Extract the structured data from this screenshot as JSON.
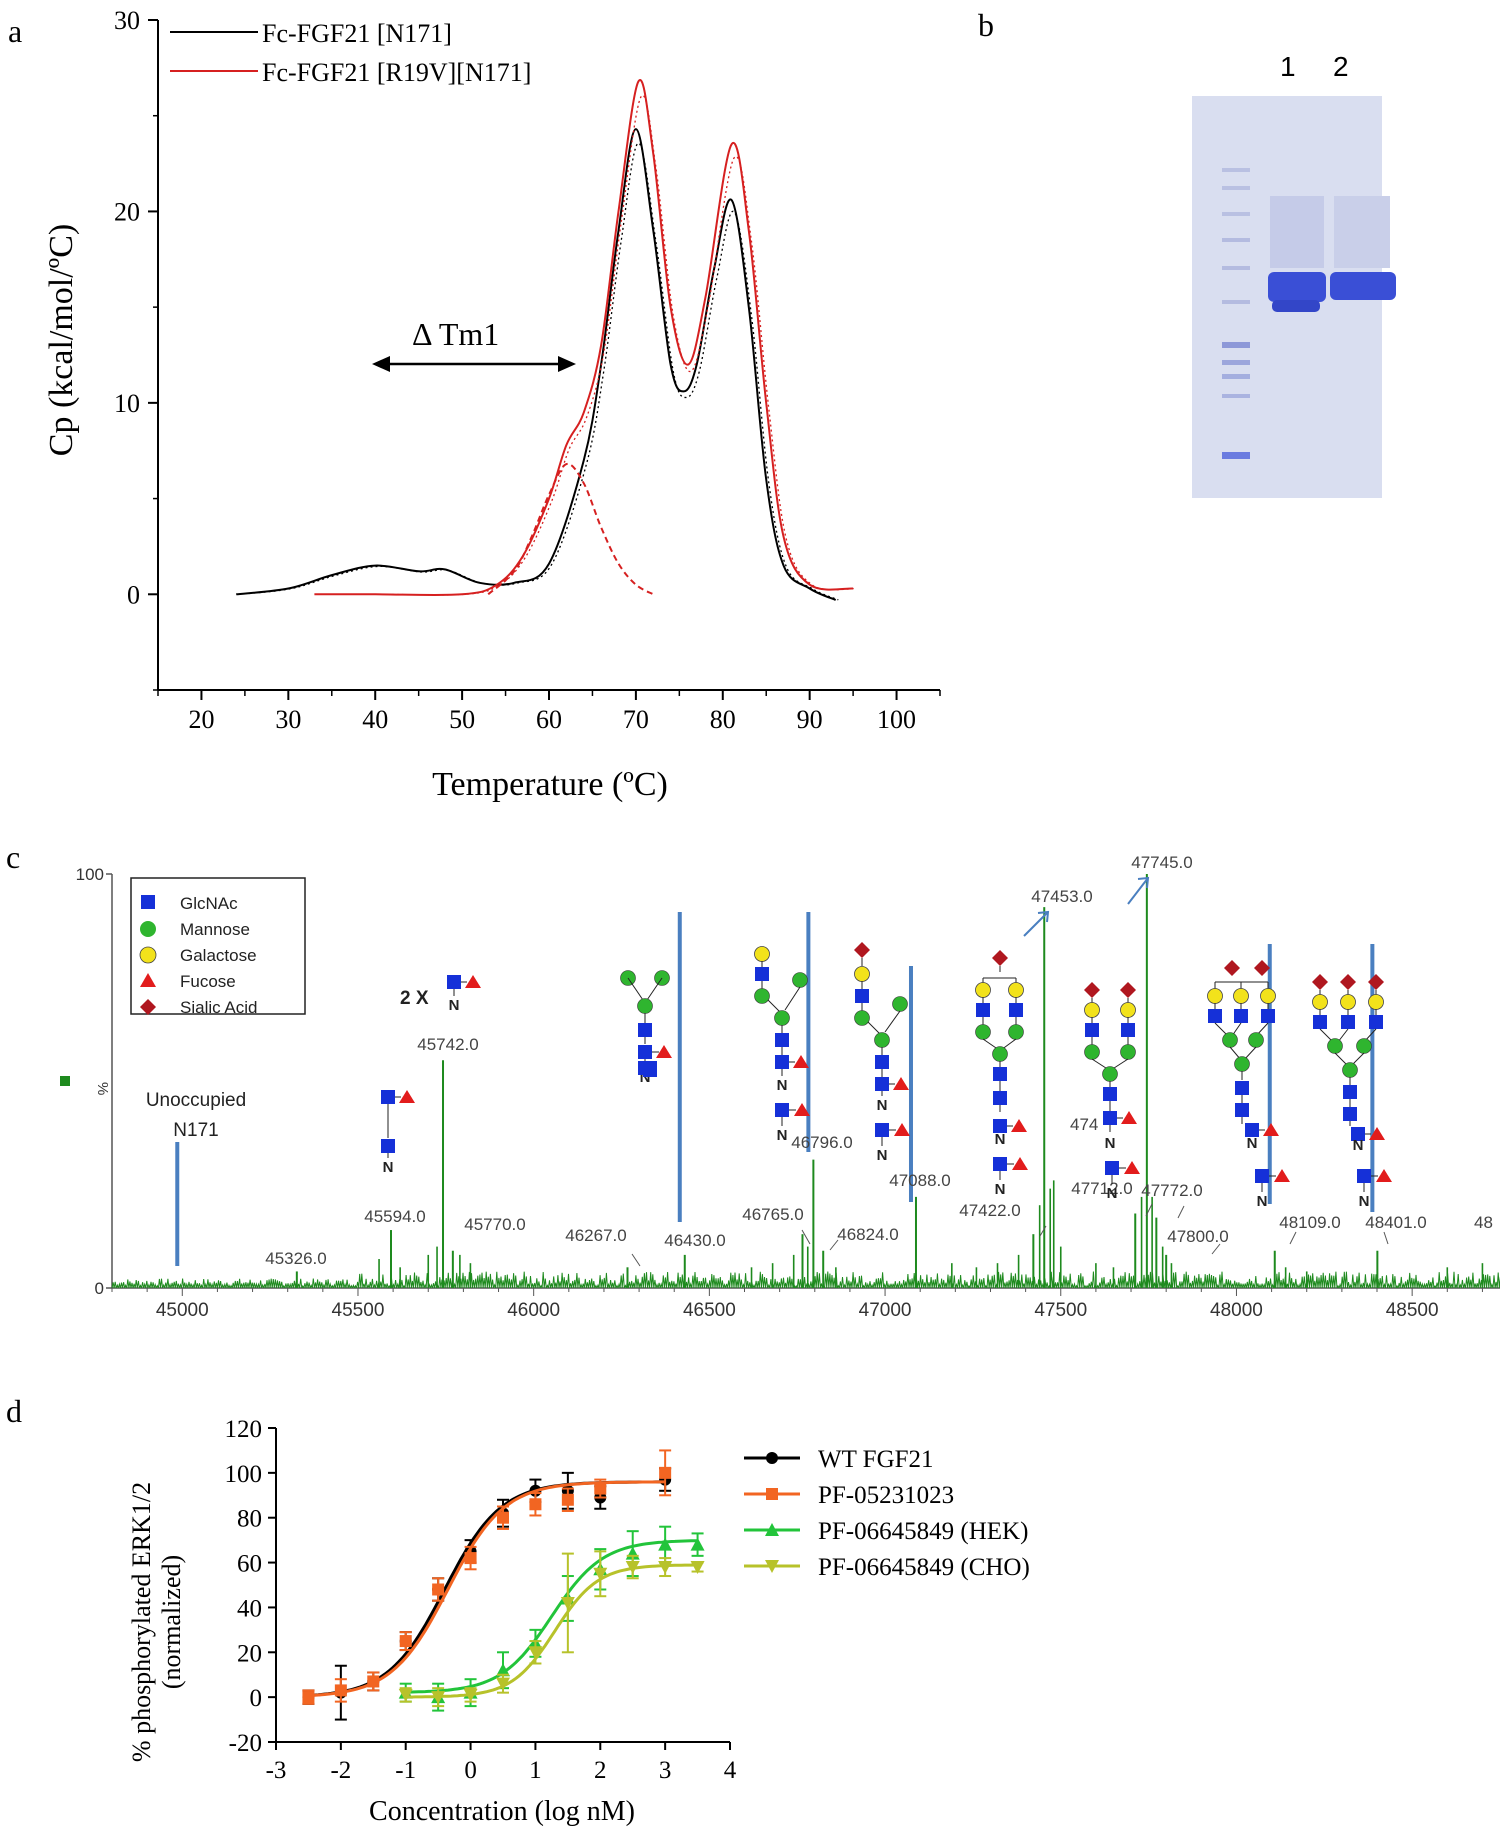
{
  "colors": {
    "black": "#000000",
    "red": "#d62020",
    "green": "#1e8a1e",
    "ms_blue_bar": "#4a7fc0",
    "glc_blue": "#1530d8",
    "man_green": "#2fb52f",
    "gal_yellow": "#f2e21b",
    "fuc_red": "#e21c1c",
    "sia_red": "#b0171f",
    "orange": "#f26522",
    "lime": "#22c43a",
    "olive": "#b7c22a",
    "gel_bg": "#dbe0f0",
    "gel_band": "#3a4fd6"
  },
  "panel_labels": {
    "a": "a",
    "b": "b",
    "c": "c",
    "d": "d"
  },
  "chart_data": [
    {
      "panel": "a",
      "type": "line",
      "xlabel": "Temperature (ºC)",
      "ylabel": "Cp (kcal/mol/ºC)",
      "xlim": [
        15,
        105
      ],
      "ylim": [
        -5,
        30
      ],
      "xticks": [
        20,
        30,
        40,
        50,
        60,
        70,
        80,
        90,
        100
      ],
      "yticks": [
        0,
        10,
        20,
        30
      ],
      "annotation": "Δ Tm1",
      "legend": [
        "Fc-FGF21 [N171]",
        "Fc-FGF21 [R19V][N171]"
      ],
      "series": [
        {
          "name": "Fc-FGF21 [N171]",
          "x": [
            24,
            30,
            35,
            40,
            45,
            48,
            52,
            56,
            60,
            64,
            66,
            68,
            70,
            72,
            74,
            75.5,
            77,
            79,
            81,
            83,
            85,
            87,
            90,
            93
          ],
          "y": [
            0,
            0.3,
            1.0,
            1.5,
            1.2,
            1.3,
            0.6,
            0.6,
            1.6,
            7,
            12,
            19,
            24.3,
            19,
            12,
            10.6,
            12,
            17,
            20.6,
            15,
            6,
            1.5,
            0.3,
            -0.3
          ]
        },
        {
          "name": "Fc-FGF21 [R19V][N171]",
          "x": [
            33,
            40,
            50,
            54,
            57,
            60,
            62,
            64,
            66,
            68,
            70.3,
            72,
            74,
            76,
            78,
            81,
            83,
            85,
            87,
            90,
            95
          ],
          "y": [
            0,
            0,
            0,
            0.5,
            2,
            5,
            7.8,
            9.5,
            13,
            20,
            26.8,
            23,
            15,
            12,
            15.5,
            23.5,
            19,
            10,
            3,
            0.5,
            0.3
          ]
        },
        {
          "name": "",
          "style": "dashed",
          "x": [
            53,
            56,
            58,
            60,
            62,
            64,
            66,
            68,
            70,
            72
          ],
          "y": [
            0,
            1.2,
            3,
            5.2,
            6.8,
            5.8,
            3.5,
            1.6,
            0.5,
            0
          ]
        }
      ]
    },
    {
      "panel": "c",
      "type": "bar",
      "ylabel": "%",
      "xlim": [
        44800,
        48750
      ],
      "ylim": [
        0,
        100
      ],
      "xticks": [
        45000,
        45500,
        46000,
        46500,
        47000,
        47500,
        48000,
        48500
      ],
      "yticks": [
        0,
        100
      ],
      "peaks": [
        {
          "x": 45326.0,
          "y": 4,
          "label": "45326.0"
        },
        {
          "x": 45594.0,
          "y": 14,
          "label": "45594.0"
        },
        {
          "x": 45742.0,
          "y": 55,
          "label": "45742.0"
        },
        {
          "x": 45770.0,
          "y": 9,
          "label": "45770.0"
        },
        {
          "x": 46267.0,
          "y": 5,
          "label": "46267.0"
        },
        {
          "x": 46430.0,
          "y": 8,
          "label": "46430.0"
        },
        {
          "x": 46765.0,
          "y": 13,
          "label": "46765.0"
        },
        {
          "x": 46796.0,
          "y": 31,
          "label": "46796.0"
        },
        {
          "x": 46824.0,
          "y": 9,
          "label": "46824.0"
        },
        {
          "x": 47088.0,
          "y": 22,
          "label": "47088.0"
        },
        {
          "x": 47422.0,
          "y": 13,
          "label": "47422.0"
        },
        {
          "x": 47453.0,
          "y": 92,
          "label": "47453.0"
        },
        {
          "x": 47712.0,
          "y": 18,
          "label": "47712.0"
        },
        {
          "x": 47745.0,
          "y": 100,
          "label": "47745.0"
        },
        {
          "x": 47772.0,
          "y": 17,
          "label": "47772.0"
        },
        {
          "x": 47800.0,
          "y": 8,
          "label": "47800.0"
        },
        {
          "x": 48109.0,
          "y": 9,
          "label": "48109.0"
        },
        {
          "x": 48401.0,
          "y": 9,
          "label": "48401.0"
        }
      ],
      "legend": [
        "GlcNAc",
        "Mannose",
        "Galactose",
        "Fucose",
        "Sialic Acid"
      ],
      "annotations": [
        "Unoccupied",
        "N171",
        "2 X"
      ],
      "glycan_letter": "N",
      "clipped_labels": [
        "474",
        "48"
      ]
    },
    {
      "panel": "d",
      "type": "scatter",
      "xlabel": "Concentration (log nM)",
      "ylabel": "% phosphorylated ERK1/2\n(normalized)",
      "xlim": [
        -3,
        4
      ],
      "ylim": [
        -20,
        120
      ],
      "xticks": [
        -3,
        -2,
        -1,
        0,
        1,
        2,
        3,
        4
      ],
      "yticks": [
        -20,
        0,
        20,
        40,
        60,
        80,
        100,
        120
      ],
      "series": [
        {
          "name": "WT FGF21",
          "x": [
            -2.5,
            -2,
            -1.5,
            -1,
            -0.5,
            0,
            0.5,
            1,
            1.5,
            2,
            3
          ],
          "y": [
            0,
            2,
            7,
            25,
            48,
            65,
            82,
            92,
            92,
            89,
            97
          ],
          "err": [
            3,
            12,
            4,
            4,
            5,
            5,
            6,
            5,
            8,
            5,
            5
          ],
          "curve": {
            "bottom": 0,
            "top": 96,
            "ec50": -0.4,
            "hill": 1
          }
        },
        {
          "name": "PF-05231023",
          "x": [
            -2.5,
            -2,
            -1.5,
            -1,
            -0.5,
            0,
            0.5,
            1,
            1.5,
            2,
            3
          ],
          "y": [
            0,
            3,
            7,
            25,
            48,
            62,
            80,
            86,
            88,
            93,
            100
          ],
          "err": [
            3,
            5,
            4,
            4,
            5,
            5,
            5,
            5,
            5,
            4,
            10
          ],
          "curve": {
            "bottom": 0,
            "top": 96,
            "ec50": -0.35,
            "hill": 1
          }
        },
        {
          "name": "PF-06645849 (HEK)",
          "x": [
            -1,
            -0.5,
            0,
            0.5,
            1,
            1.5,
            2,
            2.5,
            3,
            3.5
          ],
          "y": [
            2,
            0,
            2,
            12,
            24,
            44,
            57,
            64,
            68,
            68
          ],
          "err": [
            4,
            6,
            6,
            8,
            6,
            10,
            9,
            10,
            8,
            5
          ],
          "curve": {
            "bottom": 2,
            "top": 70,
            "ec50": 1.25,
            "hill": 1.1
          }
        },
        {
          "name": "PF-06645849 (CHO)",
          "x": [
            -1,
            -0.5,
            0,
            0.5,
            1,
            1.5,
            2,
            2.5,
            3,
            3.5
          ],
          "y": [
            1,
            0,
            1,
            6,
            20,
            42,
            55,
            58,
            58,
            58
          ],
          "err": [
            3,
            4,
            3,
            4,
            5,
            22,
            10,
            5,
            4,
            2
          ],
          "curve": {
            "bottom": 0,
            "top": 59,
            "ec50": 1.3,
            "hill": 1.3
          }
        }
      ]
    }
  ],
  "gel": {
    "lane_labels": [
      "1",
      "2"
    ]
  }
}
